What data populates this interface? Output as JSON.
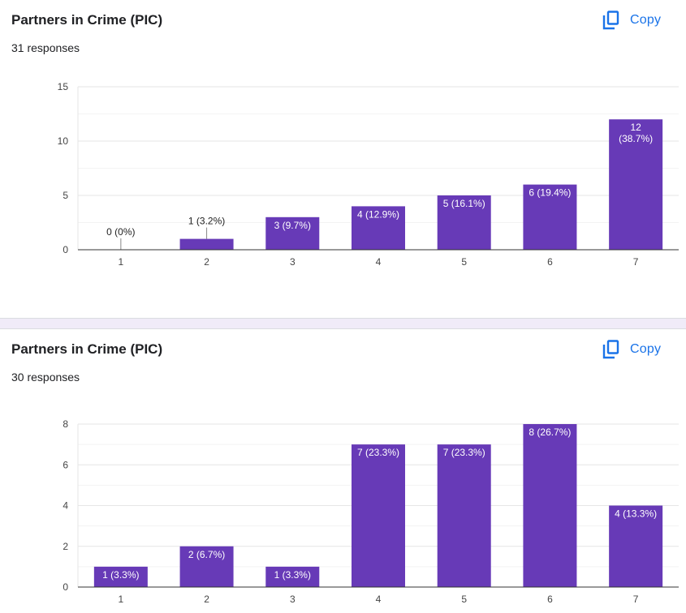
{
  "colors": {
    "bar": "#673ab7",
    "accent": "#1a73e8"
  },
  "cards": [
    {
      "title": "Partners in Crime (PIC)",
      "responses": "31 responses",
      "copy_label": "Copy",
      "copy_icon": "copy-icon",
      "chart_data": {
        "type": "bar",
        "categories": [
          "1",
          "2",
          "3",
          "4",
          "5",
          "6",
          "7"
        ],
        "values": [
          0,
          1,
          3,
          4,
          5,
          6,
          12
        ],
        "data_labels": [
          "0 (0%)",
          "1 (3.2%)",
          "3 (9.7%)",
          "4 (12.9%)",
          "5 (16.1%)",
          "6 (19.4%)",
          [
            "12",
            "(38.7%)"
          ]
        ],
        "y_ticks": [
          "0",
          "5",
          "10",
          "15"
        ],
        "ylim": [
          0,
          15
        ],
        "minor_gridlines": [
          2.5,
          7.5,
          12.5
        ],
        "grid": true
      }
    },
    {
      "title": "Partners in Crime (PIC)",
      "responses": "30 responses",
      "copy_label": "Copy",
      "copy_icon": "copy-icon",
      "chart_data": {
        "type": "bar",
        "categories": [
          "1",
          "2",
          "3",
          "4",
          "5",
          "6",
          "7"
        ],
        "values": [
          1,
          2,
          1,
          7,
          7,
          8,
          4
        ],
        "data_labels": [
          "1 (3.3%)",
          "2 (6.7%)",
          "1 (3.3%)",
          "7 (23.3%)",
          "7 (23.3%)",
          "8 (26.7%)",
          "4 (13.3%)"
        ],
        "y_ticks": [
          "0",
          "2",
          "4",
          "6",
          "8"
        ],
        "ylim": [
          0,
          8
        ],
        "minor_gridlines": [
          1,
          3,
          5,
          7
        ],
        "grid": true
      }
    }
  ]
}
